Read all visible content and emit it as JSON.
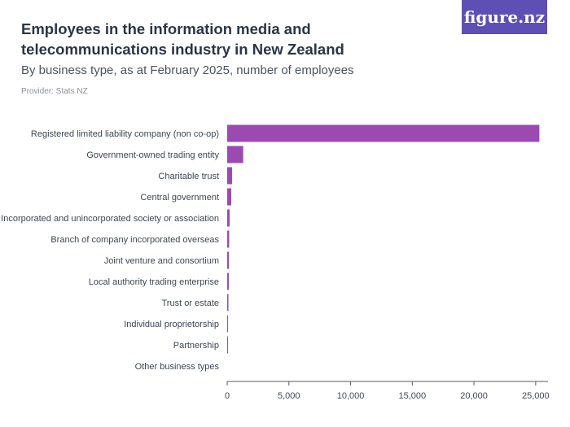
{
  "header": {
    "title": "Employees in the information media and telecommunications industry in New Zealand",
    "subtitle": "By business type, as at February 2025, number of employees",
    "provider": "Provider: Stats NZ",
    "logo_text": "figure.nz"
  },
  "colors": {
    "bar": "#9b4bb0",
    "axis": "#555b66",
    "logo_bg": "#5d4fb3"
  },
  "chart_data": {
    "type": "bar",
    "orientation": "horizontal",
    "categories": [
      "Registered limited liability company (non co-op)",
      "Government-owned trading entity",
      "Charitable trust",
      "Central government",
      "Incorporated and unincorporated society or association",
      "Branch of company incorporated overseas",
      "Joint venture and consortium",
      "Local authority trading enterprise",
      "Trust or estate",
      "Individual proprietorship",
      "Partnership",
      "Other business types"
    ],
    "values": [
      25300,
      1300,
      400,
      330,
      200,
      160,
      140,
      130,
      100,
      20,
      15,
      0
    ],
    "xlim": [
      0,
      26000
    ],
    "xticks": [
      0,
      5000,
      10000,
      15000,
      20000,
      25000
    ],
    "xtick_labels": [
      "0",
      "5,000",
      "10,000",
      "15,000",
      "20,000",
      "25,000"
    ],
    "grid": false,
    "legend": "none"
  }
}
